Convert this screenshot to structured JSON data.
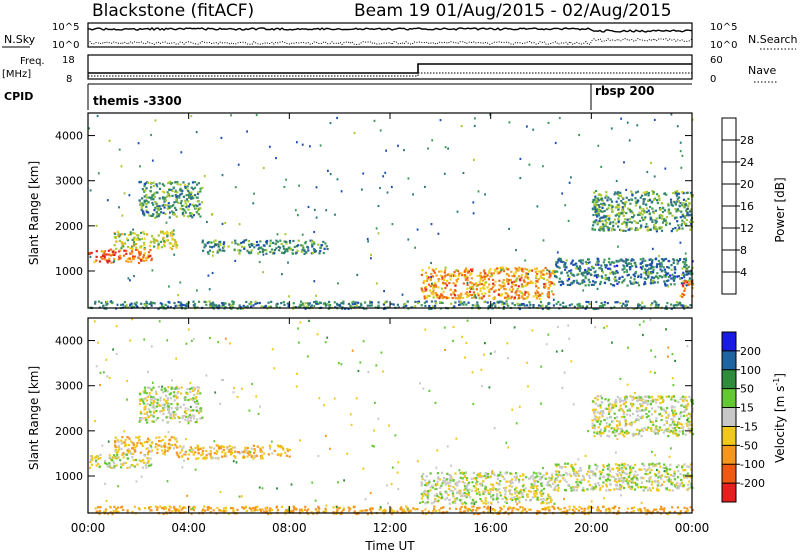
{
  "header": {
    "title": "Blackstone (fitACF)",
    "subtitle": "Beam 19 01/Aug/2015 - 02/Aug/2015"
  },
  "housekeeping": {
    "nsky_label": "N.Sky",
    "nsky_ticks": [
      "10^5",
      "10^0"
    ],
    "nsearch_label": "N.Search",
    "nsearch_ticks": [
      "10^5",
      "10^0"
    ],
    "freq_label": "Freq.",
    "freq_unit": "[MHz]",
    "freq_ticks": [
      "18",
      "8"
    ],
    "nave_label": "Nave",
    "nave_ticks": [
      "60",
      "0"
    ],
    "cpid_label": "CPID",
    "cpid_segments": [
      {
        "label": "themis -3300",
        "start_hour": 0
      },
      {
        "label": "rbsp 200",
        "start_hour": 20
      }
    ]
  },
  "chart_data": [
    {
      "type": "heatmap",
      "title": "",
      "parameter": "Power",
      "xlabel": "Time UT",
      "ylabel": "Slant Range [km]",
      "xlim": [
        0,
        24
      ],
      "ylim": [
        180,
        4500
      ],
      "x_ticks": [
        "00:00",
        "04:00",
        "08:00",
        "12:00",
        "16:00",
        "20:00",
        "00:00"
      ],
      "y_ticks": [
        1000,
        2000,
        3000,
        4000
      ],
      "colorbar": {
        "label": "Power [dB]",
        "ticks": [
          4,
          8,
          12,
          16,
          20,
          24,
          28
        ],
        "range": [
          0,
          32
        ],
        "colors": [
          "#1a1af0",
          "#1e4fb0",
          "#2e7a7a",
          "#3f9a5a",
          "#a6c832",
          "#f0d21e",
          "#f5a01e",
          "#ee6414",
          "#e61e1e"
        ]
      },
      "regions": [
        {
          "t": [
            0.0,
            2.5
          ],
          "r": [
            1200,
            1500
          ],
          "level": 26
        },
        {
          "t": [
            1.0,
            3.5
          ],
          "r": [
            1500,
            1900
          ],
          "level": 17
        },
        {
          "t": [
            2.0,
            4.5
          ],
          "r": [
            2200,
            3000
          ],
          "level": 12
        },
        {
          "t": [
            4.5,
            9.5
          ],
          "r": [
            1400,
            1700
          ],
          "level": 11
        },
        {
          "t": [
            13.2,
            18.5
          ],
          "r": [
            400,
            1100
          ],
          "level": 23
        },
        {
          "t": [
            18.5,
            24.0
          ],
          "r": [
            700,
            1300
          ],
          "level": 9
        },
        {
          "t": [
            20.0,
            24.0
          ],
          "r": [
            1900,
            2800
          ],
          "level": 12
        },
        {
          "t": [
            23.5,
            24.0
          ],
          "r": [
            450,
            800
          ],
          "level": 25
        },
        {
          "t": [
            0.0,
            24.0
          ],
          "r": [
            180,
            350
          ],
          "level": 10
        }
      ]
    },
    {
      "type": "heatmap",
      "title": "",
      "parameter": "Velocity",
      "xlabel": "Time UT",
      "ylabel": "Slant Range [km]",
      "xlim": [
        0,
        24
      ],
      "ylim": [
        180,
        4500
      ],
      "x_ticks": [
        "00:00",
        "04:00",
        "08:00",
        "12:00",
        "16:00",
        "20:00",
        "00:00"
      ],
      "y_ticks": [
        1000,
        2000,
        3000,
        4000
      ],
      "colorbar": {
        "label": "Velocity [m s^-1]",
        "ticks": [
          200,
          100,
          50,
          15,
          -15,
          -50,
          -100,
          -200
        ],
        "colors": [
          "#1a1ae6",
          "#1e64a0",
          "#2e8c3c",
          "#64c832",
          "#c8c8c8",
          "#f0c81e",
          "#f5961e",
          "#ee5a14",
          "#e61e1e"
        ]
      },
      "regions": [
        {
          "t": [
            0.0,
            2.5
          ],
          "r": [
            1200,
            1500
          ],
          "value": 0
        },
        {
          "t": [
            1.0,
            3.5
          ],
          "r": [
            1500,
            1900
          ],
          "value": -40
        },
        {
          "t": [
            2.0,
            4.5
          ],
          "r": [
            2200,
            3000
          ],
          "value": 0
        },
        {
          "t": [
            3.5,
            8.0
          ],
          "r": [
            1400,
            1700
          ],
          "value": -40
        },
        {
          "t": [
            13.2,
            18.5
          ],
          "r": [
            400,
            1100
          ],
          "value": 0
        },
        {
          "t": [
            18.5,
            24.0
          ],
          "r": [
            700,
            1300
          ],
          "value": 0
        },
        {
          "t": [
            20.0,
            24.0
          ],
          "r": [
            1900,
            2800
          ],
          "value": 0
        },
        {
          "t": [
            0.0,
            24.0
          ],
          "r": [
            180,
            350
          ],
          "value": -60
        }
      ]
    }
  ]
}
